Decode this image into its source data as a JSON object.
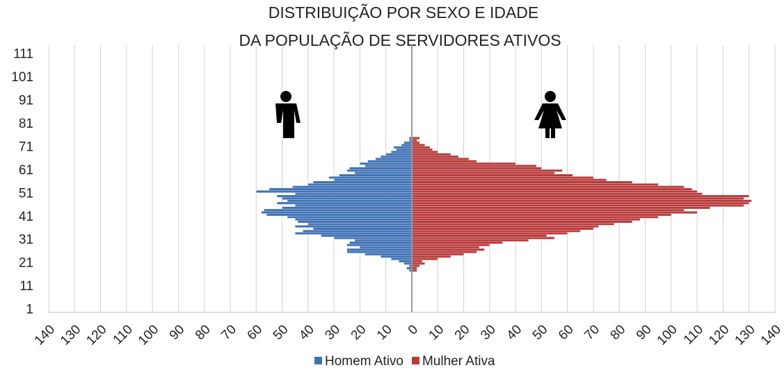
{
  "chart_data": {
    "type": "pyramid",
    "title": [
      "DISTRIBUIÇÃO POR SEXO E IDADE",
      "DA POPULAÇÃO DE SERVIDORES ATIVOS"
    ],
    "ages": [
      18,
      19,
      20,
      21,
      22,
      23,
      24,
      25,
      26,
      27,
      28,
      29,
      30,
      31,
      32,
      33,
      34,
      35,
      36,
      37,
      38,
      39,
      40,
      41,
      42,
      43,
      44,
      45,
      46,
      47,
      48,
      49,
      50,
      51,
      52,
      53,
      54,
      55,
      56,
      57,
      58,
      59,
      60,
      61,
      62,
      63,
      64,
      65,
      66,
      67,
      68,
      69,
      70,
      71,
      72,
      73,
      74,
      75,
      76
    ],
    "series": [
      {
        "name": "Homem Ativo",
        "color": "#3f72b5",
        "side": "left",
        "values": [
          1,
          2,
          1,
          3,
          5,
          8,
          12,
          18,
          25,
          25,
          20,
          25,
          24,
          22,
          30,
          35,
          45,
          42,
          38,
          45,
          40,
          44,
          45,
          48,
          56,
          58,
          57,
          50,
          45,
          52,
          48,
          50,
          52,
          45,
          60,
          55,
          46,
          40,
          38,
          30,
          32,
          28,
          22,
          25,
          24,
          18,
          20,
          17,
          14,
          12,
          10,
          8,
          6,
          7,
          4,
          3,
          1,
          1,
          0
        ]
      },
      {
        "name": "Mulher Ativa",
        "color": "#b83b3b",
        "side": "right",
        "values": [
          2,
          2,
          3,
          5,
          4,
          10,
          15,
          20,
          25,
          28,
          26,
          30,
          35,
          45,
          55,
          52,
          60,
          65,
          70,
          72,
          78,
          85,
          88,
          95,
          100,
          110,
          105,
          115,
          128,
          130,
          131,
          128,
          130,
          112,
          110,
          108,
          105,
          95,
          85,
          75,
          70,
          62,
          55,
          58,
          50,
          48,
          40,
          25,
          22,
          18,
          15,
          10,
          8,
          7,
          5,
          3,
          2,
          3,
          0
        ]
      }
    ],
    "xlim": [
      -140,
      140
    ],
    "xticks": [
      {
        "value": -140,
        "label": "140"
      },
      {
        "value": -130,
        "label": "130"
      },
      {
        "value": -120,
        "label": "120"
      },
      {
        "value": -110,
        "label": "110"
      },
      {
        "value": -100,
        "label": "100"
      },
      {
        "value": -90,
        "label": "90"
      },
      {
        "value": -80,
        "label": "80"
      },
      {
        "value": -70,
        "label": "70"
      },
      {
        "value": -60,
        "label": "60"
      },
      {
        "value": -50,
        "label": "50"
      },
      {
        "value": -40,
        "label": "40"
      },
      {
        "value": -30,
        "label": "30"
      },
      {
        "value": -20,
        "label": "20"
      },
      {
        "value": -10,
        "label": "10"
      },
      0,
      10,
      20,
      30,
      40,
      50,
      60,
      70,
      80,
      90,
      100,
      110,
      120,
      130,
      140
    ],
    "ylim": [
      0,
      115
    ],
    "yticks": [
      1,
      11,
      21,
      31,
      41,
      51,
      61,
      71,
      81,
      91,
      101,
      111
    ],
    "grid": true
  }
}
